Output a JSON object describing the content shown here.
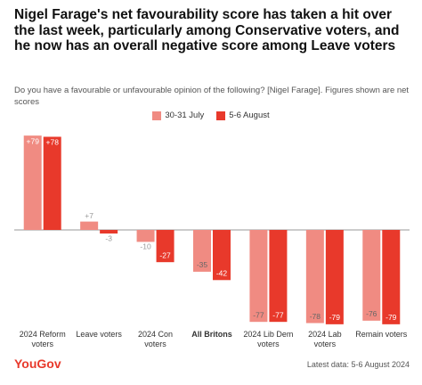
{
  "chart_data": {
    "type": "bar",
    "title": "Nigel Farage's net favourability score has taken a hit over the last week, particularly among Conservative voters, and he now has an overall negative score among Leave voters",
    "subtitle": "Do you have a favourable or unfavourable opinion of the following? [Nigel Farage]. Figures shown are net scores",
    "categories": [
      "2024 Reform voters",
      "Leave voters",
      "2024 Con voters",
      "All Britons",
      "2024 Lib Dem voters",
      "2024 Lab voters",
      "Remain voters"
    ],
    "series": [
      {
        "name": "30-31 July",
        "color": "#f08b82",
        "values": [
          79,
          7,
          -10,
          -35,
          -77,
          -78,
          -76
        ],
        "value_labels": [
          "+79",
          "+7",
          "-10",
          "-35",
          "-77",
          "-78",
          "-76"
        ]
      },
      {
        "name": "5-6 August",
        "color": "#e8392b",
        "values": [
          78,
          -3,
          -27,
          -42,
          -77,
          -79,
          -79
        ],
        "value_labels": [
          "+78",
          "-3",
          "-27",
          "-42",
          "-77",
          "-79",
          "-79"
        ]
      }
    ],
    "highlight_category": "All Britons",
    "brand": "YouGov",
    "source": "Latest data: 5-6 August 2024"
  }
}
